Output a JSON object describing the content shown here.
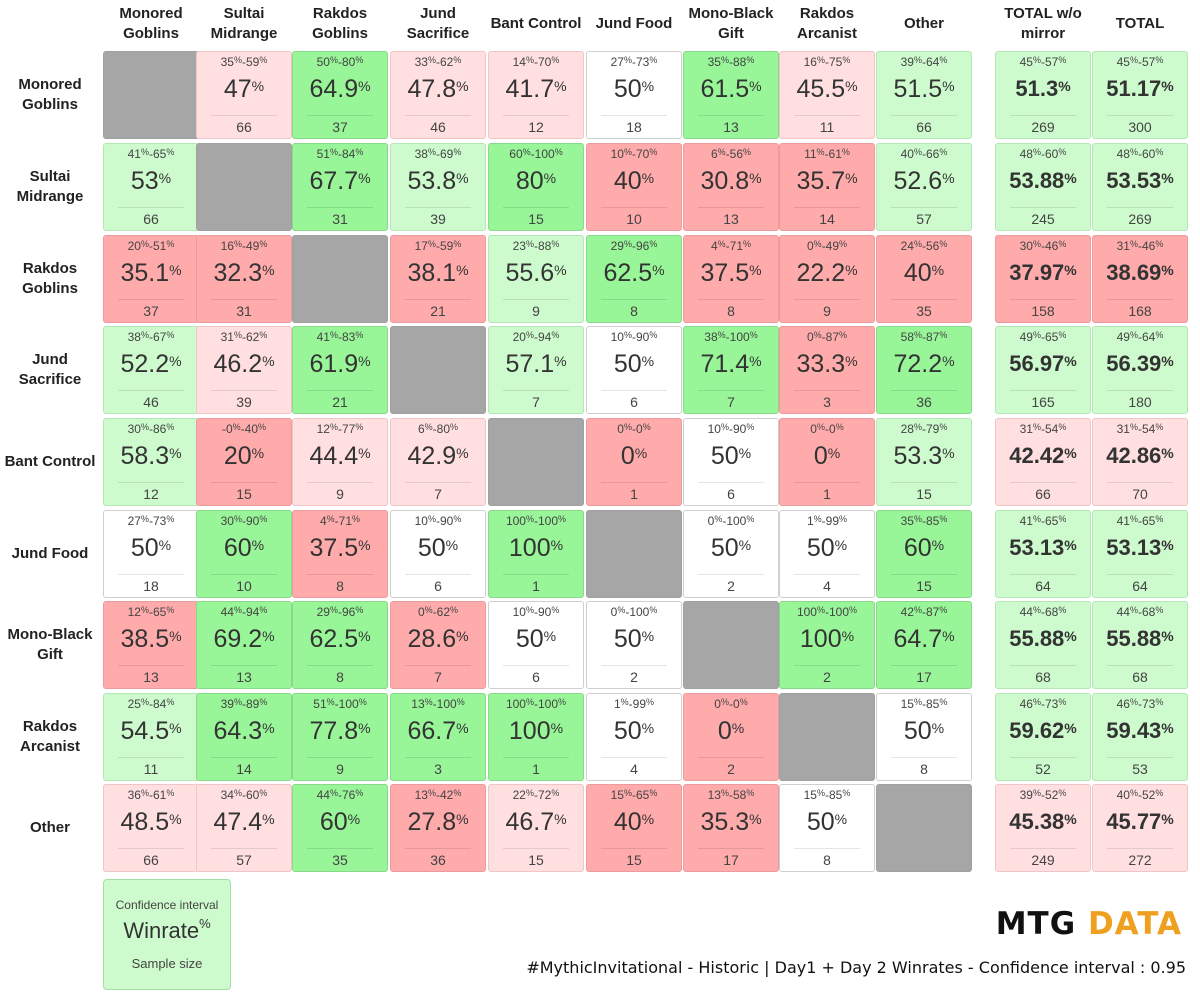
{
  "chart_data": {
    "type": "table",
    "columns": [
      "Monored Goblins",
      "Sultai Midrange",
      "Rakdos Goblins",
      "Jund Sacrifice",
      "Bant Control",
      "Jund Food",
      "Mono-Black Gift",
      "Rakdos Arcanist",
      "Other"
    ],
    "total_columns": [
      "TOTAL w/o mirror",
      "TOTAL"
    ],
    "rows": [
      {
        "name": "Monored Goblins",
        "cells": [
          null,
          {
            "ci_low": "35",
            "ci_high": "59",
            "winrate": "47",
            "n": "66"
          },
          {
            "ci_low": "50",
            "ci_high": "80",
            "winrate": "64.9",
            "n": "37"
          },
          {
            "ci_low": "33",
            "ci_high": "62",
            "winrate": "47.8",
            "n": "46"
          },
          {
            "ci_low": "14",
            "ci_high": "70",
            "winrate": "41.7",
            "n": "12"
          },
          {
            "ci_low": "27",
            "ci_high": "73",
            "winrate": "50",
            "n": "18"
          },
          {
            "ci_low": "35",
            "ci_high": "88",
            "winrate": "61.5",
            "n": "13"
          },
          {
            "ci_low": "16",
            "ci_high": "75",
            "winrate": "45.5",
            "n": "11"
          },
          {
            "ci_low": "39",
            "ci_high": "64",
            "winrate": "51.5",
            "n": "66"
          }
        ],
        "totals": [
          {
            "ci_low": "45",
            "ci_high": "57",
            "winrate": "51.3",
            "n": "269"
          },
          {
            "ci_low": "45",
            "ci_high": "57",
            "winrate": "51.17",
            "n": "300"
          }
        ]
      },
      {
        "name": "Sultai Midrange",
        "cells": [
          {
            "ci_low": "41",
            "ci_high": "65",
            "winrate": "53",
            "n": "66"
          },
          null,
          {
            "ci_low": "51",
            "ci_high": "84",
            "winrate": "67.7",
            "n": "31"
          },
          {
            "ci_low": "38",
            "ci_high": "69",
            "winrate": "53.8",
            "n": "39"
          },
          {
            "ci_low": "60",
            "ci_high": "100",
            "winrate": "80",
            "n": "15"
          },
          {
            "ci_low": "10",
            "ci_high": "70",
            "winrate": "40",
            "n": "10"
          },
          {
            "ci_low": "6",
            "ci_high": "56",
            "winrate": "30.8",
            "n": "13"
          },
          {
            "ci_low": "11",
            "ci_high": "61",
            "winrate": "35.7",
            "n": "14"
          },
          {
            "ci_low": "40",
            "ci_high": "66",
            "winrate": "52.6",
            "n": "57"
          }
        ],
        "totals": [
          {
            "ci_low": "48",
            "ci_high": "60",
            "winrate": "53.88",
            "n": "245"
          },
          {
            "ci_low": "48",
            "ci_high": "60",
            "winrate": "53.53",
            "n": "269"
          }
        ]
      },
      {
        "name": "Rakdos Goblins",
        "cells": [
          {
            "ci_low": "20",
            "ci_high": "51",
            "winrate": "35.1",
            "n": "37"
          },
          {
            "ci_low": "16",
            "ci_high": "49",
            "winrate": "32.3",
            "n": "31"
          },
          null,
          {
            "ci_low": "17",
            "ci_high": "59",
            "winrate": "38.1",
            "n": "21"
          },
          {
            "ci_low": "23",
            "ci_high": "88",
            "winrate": "55.6",
            "n": "9"
          },
          {
            "ci_low": "29",
            "ci_high": "96",
            "winrate": "62.5",
            "n": "8"
          },
          {
            "ci_low": "4",
            "ci_high": "71",
            "winrate": "37.5",
            "n": "8"
          },
          {
            "ci_low": "0",
            "ci_high": "49",
            "winrate": "22.2",
            "n": "9"
          },
          {
            "ci_low": "24",
            "ci_high": "56",
            "winrate": "40",
            "n": "35"
          }
        ],
        "totals": [
          {
            "ci_low": "30",
            "ci_high": "46",
            "winrate": "37.97",
            "n": "158"
          },
          {
            "ci_low": "31",
            "ci_high": "46",
            "winrate": "38.69",
            "n": "168"
          }
        ]
      },
      {
        "name": "Jund Sacrifice",
        "cells": [
          {
            "ci_low": "38",
            "ci_high": "67",
            "winrate": "52.2",
            "n": "46"
          },
          {
            "ci_low": "31",
            "ci_high": "62",
            "winrate": "46.2",
            "n": "39"
          },
          {
            "ci_low": "41",
            "ci_high": "83",
            "winrate": "61.9",
            "n": "21"
          },
          null,
          {
            "ci_low": "20",
            "ci_high": "94",
            "winrate": "57.1",
            "n": "7"
          },
          {
            "ci_low": "10",
            "ci_high": "90",
            "winrate": "50",
            "n": "6"
          },
          {
            "ci_low": "38",
            "ci_high": "100",
            "winrate": "71.4",
            "n": "7"
          },
          {
            "ci_low": "0",
            "ci_high": "87",
            "winrate": "33.3",
            "n": "3"
          },
          {
            "ci_low": "58",
            "ci_high": "87",
            "winrate": "72.2",
            "n": "36"
          }
        ],
        "totals": [
          {
            "ci_low": "49",
            "ci_high": "65",
            "winrate": "56.97",
            "n": "165"
          },
          {
            "ci_low": "49",
            "ci_high": "64",
            "winrate": "56.39",
            "n": "180"
          }
        ]
      },
      {
        "name": "Bant Control",
        "cells": [
          {
            "ci_low": "30",
            "ci_high": "86",
            "winrate": "58.3",
            "n": "12"
          },
          {
            "ci_low": "-0",
            "ci_high": "40",
            "winrate": "20",
            "n": "15"
          },
          {
            "ci_low": "12",
            "ci_high": "77",
            "winrate": "44.4",
            "n": "9"
          },
          {
            "ci_low": "6",
            "ci_high": "80",
            "winrate": "42.9",
            "n": "7"
          },
          null,
          {
            "ci_low": "0",
            "ci_high": "0",
            "winrate": "0",
            "n": "1"
          },
          {
            "ci_low": "10",
            "ci_high": "90",
            "winrate": "50",
            "n": "6"
          },
          {
            "ci_low": "0",
            "ci_high": "0",
            "winrate": "0",
            "n": "1"
          },
          {
            "ci_low": "28",
            "ci_high": "79",
            "winrate": "53.3",
            "n": "15"
          }
        ],
        "totals": [
          {
            "ci_low": "31",
            "ci_high": "54",
            "winrate": "42.42",
            "n": "66"
          },
          {
            "ci_low": "31",
            "ci_high": "54",
            "winrate": "42.86",
            "n": "70"
          }
        ]
      },
      {
        "name": "Jund Food",
        "cells": [
          {
            "ci_low": "27",
            "ci_high": "73",
            "winrate": "50",
            "n": "18"
          },
          {
            "ci_low": "30",
            "ci_high": "90",
            "winrate": "60",
            "n": "10"
          },
          {
            "ci_low": "4",
            "ci_high": "71",
            "winrate": "37.5",
            "n": "8"
          },
          {
            "ci_low": "10",
            "ci_high": "90",
            "winrate": "50",
            "n": "6"
          },
          {
            "ci_low": "100",
            "ci_high": "100",
            "winrate": "100",
            "n": "1"
          },
          null,
          {
            "ci_low": "0",
            "ci_high": "100",
            "winrate": "50",
            "n": "2"
          },
          {
            "ci_low": "1",
            "ci_high": "99",
            "winrate": "50",
            "n": "4"
          },
          {
            "ci_low": "35",
            "ci_high": "85",
            "winrate": "60",
            "n": "15"
          }
        ],
        "totals": [
          {
            "ci_low": "41",
            "ci_high": "65",
            "winrate": "53.13",
            "n": "64"
          },
          {
            "ci_low": "41",
            "ci_high": "65",
            "winrate": "53.13",
            "n": "64"
          }
        ]
      },
      {
        "name": "Mono-Black Gift",
        "cells": [
          {
            "ci_low": "12",
            "ci_high": "65",
            "winrate": "38.5",
            "n": "13"
          },
          {
            "ci_low": "44",
            "ci_high": "94",
            "winrate": "69.2",
            "n": "13"
          },
          {
            "ci_low": "29",
            "ci_high": "96",
            "winrate": "62.5",
            "n": "8"
          },
          {
            "ci_low": "0",
            "ci_high": "62",
            "winrate": "28.6",
            "n": "7"
          },
          {
            "ci_low": "10",
            "ci_high": "90",
            "winrate": "50",
            "n": "6"
          },
          {
            "ci_low": "0",
            "ci_high": "100",
            "winrate": "50",
            "n": "2"
          },
          null,
          {
            "ci_low": "100",
            "ci_high": "100",
            "winrate": "100",
            "n": "2"
          },
          {
            "ci_low": "42",
            "ci_high": "87",
            "winrate": "64.7",
            "n": "17"
          }
        ],
        "totals": [
          {
            "ci_low": "44",
            "ci_high": "68",
            "winrate": "55.88",
            "n": "68"
          },
          {
            "ci_low": "44",
            "ci_high": "68",
            "winrate": "55.88",
            "n": "68"
          }
        ]
      },
      {
        "name": "Rakdos Arcanist",
        "cells": [
          {
            "ci_low": "25",
            "ci_high": "84",
            "winrate": "54.5",
            "n": "11"
          },
          {
            "ci_low": "39",
            "ci_high": "89",
            "winrate": "64.3",
            "n": "14"
          },
          {
            "ci_low": "51",
            "ci_high": "100",
            "winrate": "77.8",
            "n": "9"
          },
          {
            "ci_low": "13",
            "ci_high": "100",
            "winrate": "66.7",
            "n": "3"
          },
          {
            "ci_low": "100",
            "ci_high": "100",
            "winrate": "100",
            "n": "1"
          },
          {
            "ci_low": "1",
            "ci_high": "99",
            "winrate": "50",
            "n": "4"
          },
          {
            "ci_low": "0",
            "ci_high": "0",
            "winrate": "0",
            "n": "2"
          },
          null,
          {
            "ci_low": "15",
            "ci_high": "85",
            "winrate": "50",
            "n": "8"
          }
        ],
        "totals": [
          {
            "ci_low": "46",
            "ci_high": "73",
            "winrate": "59.62",
            "n": "52"
          },
          {
            "ci_low": "46",
            "ci_high": "73",
            "winrate": "59.43",
            "n": "53"
          }
        ]
      },
      {
        "name": "Other",
        "cells": [
          {
            "ci_low": "36",
            "ci_high": "61",
            "winrate": "48.5",
            "n": "66"
          },
          {
            "ci_low": "34",
            "ci_high": "60",
            "winrate": "47.4",
            "n": "57"
          },
          {
            "ci_low": "44",
            "ci_high": "76",
            "winrate": "60",
            "n": "35"
          },
          {
            "ci_low": "13",
            "ci_high": "42",
            "winrate": "27.8",
            "n": "36"
          },
          {
            "ci_low": "22",
            "ci_high": "72",
            "winrate": "46.7",
            "n": "15"
          },
          {
            "ci_low": "15",
            "ci_high": "65",
            "winrate": "40",
            "n": "15"
          },
          {
            "ci_low": "13",
            "ci_high": "58",
            "winrate": "35.3",
            "n": "17"
          },
          {
            "ci_low": "15",
            "ci_high": "85",
            "winrate": "50",
            "n": "8"
          },
          null
        ],
        "totals": [
          {
            "ci_low": "39",
            "ci_high": "52",
            "winrate": "45.38",
            "n": "249"
          },
          {
            "ci_low": "40",
            "ci_high": "52",
            "winrate": "45.77",
            "n": "272"
          }
        ]
      }
    ],
    "colors": {
      "strong_green": "#98f598",
      "light_green": "#cdfbcd",
      "neutral": "#ffffff",
      "light_red": "#ffdfe0",
      "strong_red": "#ffaaab",
      "mirror": "#a6a6a6"
    }
  },
  "legend": {
    "ci_label": "Confidence interval",
    "winrate_label": "Winrate",
    "percent_sign": "%",
    "sample_label": "Sample size"
  },
  "brand": {
    "part1": "MTG ",
    "part2": "DATA"
  },
  "caption": "#MythicInvitational - Historic |  Day1 + Day 2 Winrates - Confidence interval : 0.95"
}
